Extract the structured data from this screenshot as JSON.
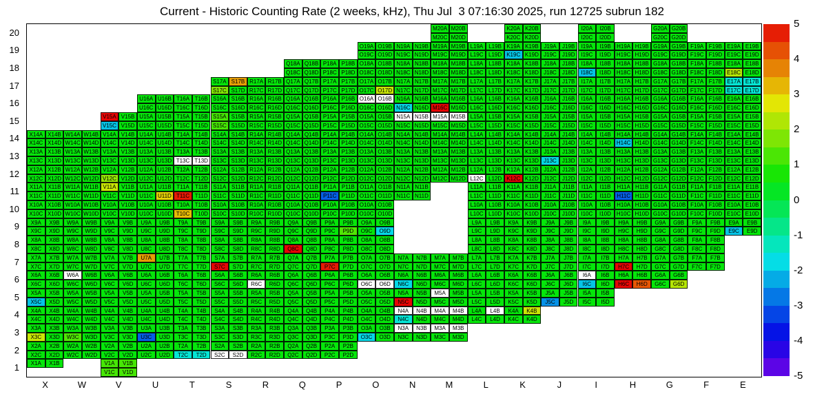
{
  "chart_data": {
    "type": "heatmap",
    "title": "Current - Historic Counting Rate (2 weeks, kHz), Thu Jul  3 07:16:30 2025, run 12725 subrun 182",
    "columns": [
      "X",
      "W",
      "V",
      "U",
      "T",
      "S",
      "R",
      "Q",
      "P",
      "O",
      "N",
      "M",
      "L",
      "K",
      "J",
      "I",
      "H",
      "G",
      "F",
      "E"
    ],
    "rows": [
      20,
      19,
      18,
      17,
      16,
      15,
      14,
      13,
      12,
      11,
      10,
      9,
      8,
      7,
      6,
      5,
      4,
      3,
      2,
      1
    ],
    "sub_labels": [
      "A",
      "B",
      "C",
      "D"
    ],
    "value_range": [
      -5,
      5
    ],
    "default_value": 0.5,
    "colorbar_ticks": [
      5,
      4,
      3,
      2,
      1,
      0,
      -1,
      -2,
      -3,
      -4,
      -5
    ],
    "colorbar_bands": 20,
    "cells": [
      {
        "row": 20,
        "cols": "MKIG",
        "special": {}
      },
      {
        "row": 19,
        "cols": "ONMLKJIHGFE",
        "special": {
          "K": [
            0.5,
            0.5,
            -2,
            0.5
          ]
        }
      },
      {
        "row": 18,
        "cols": "QPONMLKJIHGFE",
        "special": {
          "I": [
            0.5,
            0.5,
            -2,
            0.5
          ],
          "E": [
            0.5,
            0.5,
            2.3,
            0.5
          ]
        }
      },
      {
        "row": 17,
        "cols": "SRQPONMLKJIHGFE",
        "special": {
          "S": [
            0.5,
            3.5,
            1.8,
            0.5
          ],
          "O": [
            0.5,
            0.5,
            0.5,
            2.5
          ],
          "E": [
            -1.5,
            -1.5,
            -1.5,
            -1.5
          ]
        }
      },
      {
        "row": 16,
        "cols": "UTSRQPONMLKJIHGFE",
        "special": {
          "O": [
            null,
            null,
            0.5,
            0.5
          ],
          "N": [
            0.5,
            0.5,
            -1.8,
            0.5
          ],
          "M": [
            0.5,
            0.5,
            5,
            0.5
          ]
        }
      },
      {
        "row": 15,
        "cols": "VUTSRQPONMLKJIHGFE",
        "special": {
          "V": [
            5,
            0.5,
            -2,
            0.5
          ],
          "S": [
            1.2,
            0.5,
            1.2,
            0.5
          ],
          "N": [
            null,
            null,
            0.5,
            0.5
          ],
          "M": [
            null,
            null,
            0.5,
            0.5
          ]
        }
      },
      {
        "row": 14,
        "cols": "XWVUTSRQPONMLKJIHGFE",
        "special": {
          "H": [
            0.5,
            0.5,
            -2,
            0.5
          ]
        }
      },
      {
        "row": 13,
        "cols": "XWVUTSRQPONMLKJIHGFE",
        "special": {
          "T": [
            0.5,
            0.5,
            null,
            null
          ],
          "J": [
            0.5,
            0.5,
            -1.8,
            0.5
          ]
        }
      },
      {
        "row": 12,
        "cols": "XWVUTSRQPONMLKJIHGFE",
        "special": {
          "V": [
            0.5,
            0.5,
            2,
            0.5
          ],
          "L": [
            0.5,
            0.5,
            null,
            0.5
          ],
          "K": [
            0.5,
            0.5,
            5,
            0.5
          ]
        }
      },
      {
        "row": 11,
        "cols": "XWVUTSRQPONLKJIHGFE",
        "special": {
          "V": [
            2.5,
            0.5,
            0.5,
            0.5
          ],
          "U": [
            0.5,
            0.5,
            0.5,
            3
          ],
          "T": [
            0.5,
            0.5,
            4.8,
            0.5
          ],
          "P": [
            0.5,
            0.5,
            -3,
            0.5
          ],
          "H": [
            0.5,
            0.5,
            -3,
            0.5
          ]
        }
      },
      {
        "row": 10,
        "cols": "XWVUTSRQPOLKJIHGFE",
        "special": {
          "T": [
            0.5,
            0.5,
            3.2,
            0.5
          ]
        }
      },
      {
        "row": 9,
        "cols": "XWVUTSRQPOLKJIHGFE",
        "special": {
          "P": [
            0.5,
            0.5,
            0.5,
            1.3
          ],
          "O": [
            0.5,
            0.5,
            0.5,
            -1.8
          ],
          "E": [
            0.5,
            0.5,
            -2,
            0.5
          ]
        }
      },
      {
        "row": 8,
        "cols": "XWVUTSRQPOLKJIHGF",
        "special": {
          "Q": [
            0.5,
            0.5,
            5,
            0.5
          ]
        }
      },
      {
        "row": 7,
        "cols": "XWVUTSRQPONMLKJIHGF",
        "special": {
          "U": [
            3.5,
            0.5,
            0.5,
            0.5
          ],
          "S": [
            0.5,
            0.5,
            5,
            0.5
          ],
          "P": [
            0.5,
            0.5,
            4.8,
            0.5
          ],
          "H": [
            0.5,
            0.5,
            5,
            0.5
          ]
        }
      },
      {
        "row": 6,
        "cols": "XWVUTSRQPONMLKJIHG",
        "special": {
          "W": [
            null,
            0.5,
            0.5,
            0.5
          ],
          "R": [
            0.5,
            0.5,
            null,
            0.5
          ],
          "O": [
            0.5,
            0.5,
            null,
            null
          ],
          "N": [
            0.5,
            0.5,
            -1.8,
            0.5
          ],
          "I": [
            null,
            0.5,
            -2,
            0.5
          ],
          "H": [
            0.5,
            0.5,
            5,
            4.2
          ],
          "G": [
            0.5,
            0.5,
            0.5,
            2.3
          ]
        }
      },
      {
        "row": 5,
        "cols": "XWVUTSRQPONMLKJI",
        "special": {
          "X": [
            0.5,
            0.5,
            -2,
            0.5
          ],
          "N": [
            0.5,
            0.5,
            5,
            0.5
          ],
          "M": [
            null,
            0.5,
            0.5,
            0.5
          ],
          "J": [
            0.5,
            0.5,
            -2.5,
            0.5
          ]
        }
      },
      {
        "row": 4,
        "cols": "XWVUTSRQPONMLK",
        "special": {
          "N": [
            null,
            null,
            -1.5,
            0.5
          ],
          "M": [
            null,
            null,
            0.5,
            0.5
          ],
          "L": [
            0.5,
            null,
            0.5,
            0.5
          ],
          "K": [
            0.5,
            2.5,
            0.5,
            0.5
          ]
        }
      },
      {
        "row": 3,
        "cols": "XWVUTSRQPONM",
        "special": {
          "X": [
            0.5,
            0.5,
            2.5,
            0.5
          ],
          "W": [
            0.5,
            0.5,
            1.3,
            0.5
          ],
          "U": [
            0.5,
            0.5,
            -3,
            0.5
          ],
          "O": [
            0.5,
            0.5,
            -1.8,
            0.5
          ],
          "N": [
            null,
            null,
            0.5,
            0.5
          ],
          "M": [
            null,
            null,
            0.5,
            0.5
          ]
        }
      },
      {
        "row": 2,
        "cols": "XWVUTSRQP",
        "special": {
          "T": [
            0.5,
            0.5,
            -1.5,
            -1.5
          ],
          "S": [
            0.5,
            0.5,
            null,
            null
          ]
        }
      },
      {
        "row": 1,
        "cols": "XV",
        "special": {
          "X": [
            0.5,
            0.5,
            "x",
            "x"
          ],
          "V": [
            1.2,
            1.2,
            1.2,
            1.2
          ]
        }
      }
    ]
  }
}
